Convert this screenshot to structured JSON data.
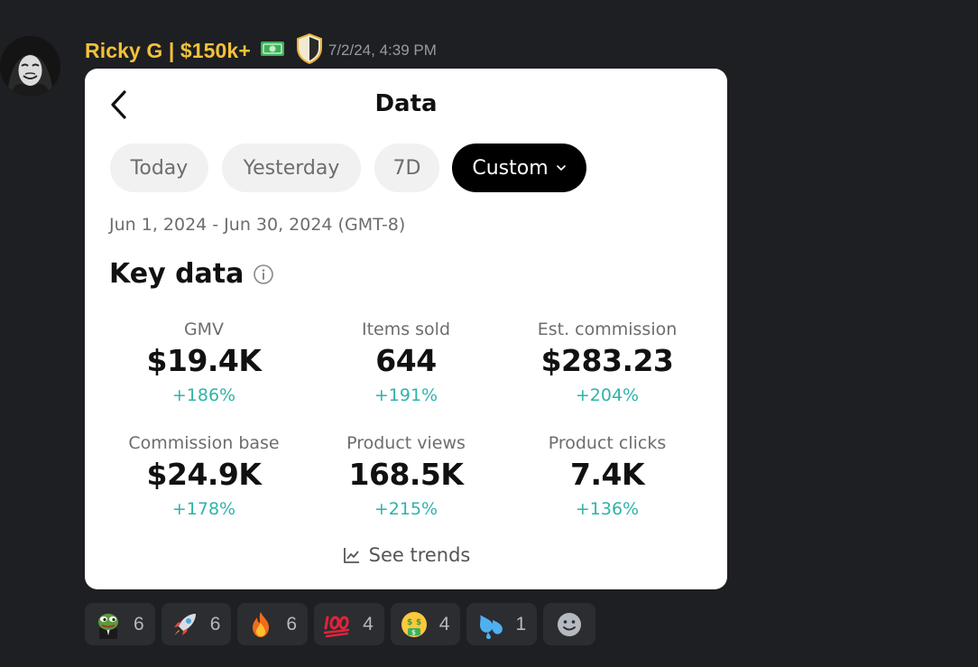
{
  "message": {
    "author": "Ricky G | $150k+",
    "timestamp": "7/2/24, 4:39 PM"
  },
  "card": {
    "title": "Data",
    "tabs": [
      {
        "label": "Today"
      },
      {
        "label": "Yesterday"
      },
      {
        "label": "7D"
      },
      {
        "label": "Custom",
        "active": true
      }
    ],
    "date_range": "Jun 1, 2024 - Jun 30, 2024 (GMT-8)",
    "section_title": "Key data",
    "metrics": [
      {
        "label": "GMV",
        "value": "$19.4K",
        "change": "+186%"
      },
      {
        "label": "Items sold",
        "value": "644",
        "change": "+191%"
      },
      {
        "label": "Est. commission",
        "value": "$283.23",
        "change": "+204%"
      },
      {
        "label": "Commission base",
        "value": "$24.9K",
        "change": "+178%"
      },
      {
        "label": "Product views",
        "value": "168.5K",
        "change": "+215%"
      },
      {
        "label": "Product clicks",
        "value": "7.4K",
        "change": "+136%"
      }
    ],
    "see_trends": "See trends"
  },
  "reactions": [
    {
      "icon": "pepe-suit-icon",
      "count": "6"
    },
    {
      "icon": "rocket-icon",
      "count": "6"
    },
    {
      "icon": "fire-icon",
      "count": "6"
    },
    {
      "icon": "hundred-points-icon",
      "count": "4"
    },
    {
      "icon": "money-mouth-face-icon",
      "count": "4"
    },
    {
      "icon": "sweat-droplets-icon",
      "count": "1"
    }
  ],
  "colors": {
    "background": "#1e1f22",
    "username": "#f2c23a",
    "change_positive": "#2fb3a9",
    "active_tab": "#000000"
  }
}
